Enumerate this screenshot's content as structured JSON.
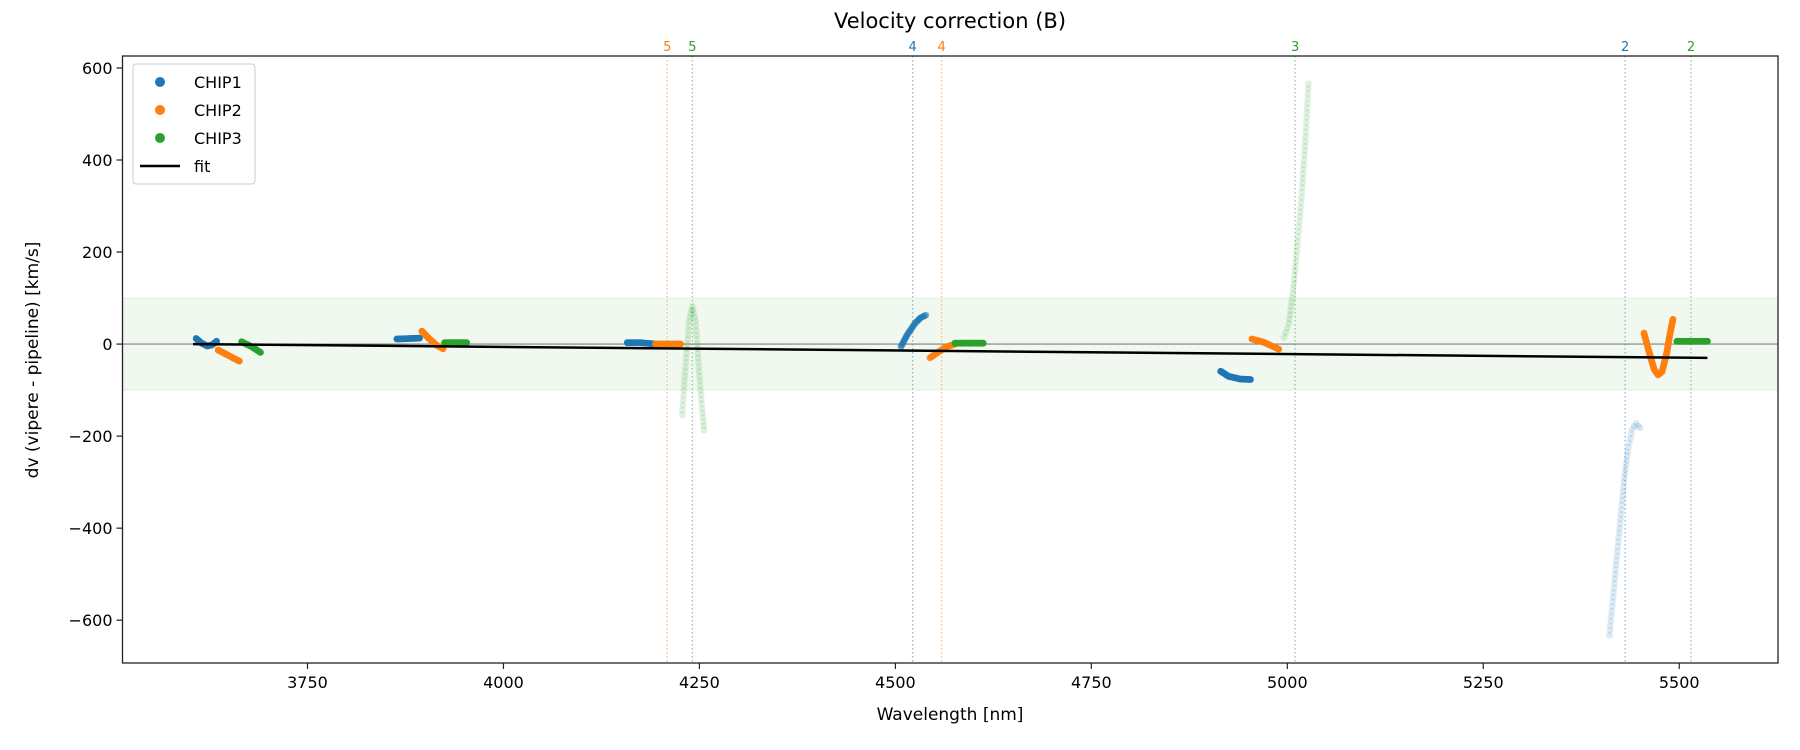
{
  "chart_data": {
    "type": "scatter",
    "title": "Velocity correction (B)",
    "xlabel": "Wavelength [nm]",
    "ylabel": "dv (vipere - pipeline) [km/s]",
    "xlim": [
      3514,
      5626
    ],
    "ylim": [
      -693,
      626
    ],
    "xticks": [
      3750,
      4000,
      4250,
      4500,
      4750,
      5000,
      5250,
      5500
    ],
    "yticks": [
      600,
      400,
      200,
      0,
      -200,
      -400,
      -600
    ],
    "band": {
      "y0": -100,
      "y1": 100,
      "color": "#2ca02c"
    },
    "zero_line": 0,
    "legend": {
      "placement": "upper-left",
      "entries": [
        "CHIP1",
        "CHIP2",
        "CHIP3",
        "fit"
      ]
    },
    "series": [
      {
        "name": "CHIP1",
        "color": "#1f77b4",
        "segments": [
          {
            "alpha": 1,
            "points": [
              [
                3608,
                12
              ],
              [
                3615,
                2
              ],
              [
                3622,
                -4
              ],
              [
                3628,
                -2
              ],
              [
                3634,
                6
              ]
            ]
          },
          {
            "alpha": 1,
            "points": [
              [
                3864,
                11
              ],
              [
                3880,
                12
              ],
              [
                3893,
                13
              ]
            ]
          },
          {
            "alpha": 1,
            "points": [
              [
                4158,
                3
              ],
              [
                4175,
                3
              ],
              [
                4194,
                0
              ]
            ]
          },
          {
            "alpha": 0.5,
            "points": [
              [
                4507,
                -6
              ],
              [
                4515,
                20
              ],
              [
                4525,
                45
              ],
              [
                4532,
                57
              ],
              [
                4539,
                63
              ]
            ]
          },
          {
            "alpha": 1,
            "points": [
              [
                4915,
                -59
              ],
              [
                4925,
                -70
              ],
              [
                4940,
                -76
              ],
              [
                4953,
                -77
              ]
            ]
          },
          {
            "alpha": 0.15,
            "points": [
              [
                5411,
                -633
              ],
              [
                5415,
                -560
              ],
              [
                5420,
                -470
              ],
              [
                5425,
                -380
              ],
              [
                5430,
                -290
              ],
              [
                5435,
                -225
              ],
              [
                5440,
                -185
              ],
              [
                5445,
                -172
              ],
              [
                5450,
                -182
              ]
            ]
          }
        ]
      },
      {
        "name": "CHIP2",
        "color": "#ff7f0e",
        "segments": [
          {
            "alpha": 1,
            "points": [
              [
                3636,
                -13
              ],
              [
                3663,
                -37
              ]
            ]
          },
          {
            "alpha": 1,
            "points": [
              [
                3896,
                28
              ],
              [
                3905,
                12
              ],
              [
                3915,
                -3
              ],
              [
                3923,
                -10
              ]
            ]
          },
          {
            "alpha": 1,
            "points": [
              [
                4194,
                0
              ],
              [
                4226,
                0
              ]
            ]
          },
          {
            "alpha": 0.8,
            "points": [
              [
                4544,
                -30
              ],
              [
                4555,
                -17
              ],
              [
                4565,
                -6
              ],
              [
                4576,
                0
              ]
            ]
          },
          {
            "alpha": 1,
            "points": [
              [
                4955,
                11
              ],
              [
                4970,
                4
              ],
              [
                4989,
                -11
              ]
            ]
          },
          {
            "alpha": 0.9,
            "points": [
              [
                5455,
                24
              ],
              [
                5462,
                -20
              ],
              [
                5468,
                -55
              ],
              [
                5473,
                -67
              ],
              [
                5478,
                -60
              ],
              [
                5484,
                -20
              ],
              [
                5488,
                20
              ],
              [
                5492,
                54
              ]
            ]
          }
        ]
      },
      {
        "name": "CHIP3",
        "color": "#2ca02c",
        "segments": [
          {
            "alpha": 1,
            "points": [
              [
                3666,
                5
              ],
              [
                3678,
                -5
              ],
              [
                3690,
                -18
              ]
            ]
          },
          {
            "alpha": 1,
            "points": [
              [
                3925,
                3
              ],
              [
                3953,
                3
              ]
            ]
          },
          {
            "alpha": 0.15,
            "points": [
              [
                4228,
                -154
              ],
              [
                4231,
                -80
              ],
              [
                4234,
                -10
              ],
              [
                4237,
                50
              ],
              [
                4241,
                82
              ],
              [
                4245,
                50
              ],
              [
                4248,
                -20
              ],
              [
                4251,
                -90
              ],
              [
                4254,
                -150
              ],
              [
                4256,
                -187
              ]
            ]
          },
          {
            "alpha": 1,
            "points": [
              [
                4576,
                2
              ],
              [
                4612,
                2
              ]
            ]
          },
          {
            "alpha": 0.15,
            "points": [
              [
                4996,
                15
              ],
              [
                5002,
                45
              ],
              [
                5007,
                110
              ],
              [
                5011,
                180
              ],
              [
                5015,
                255
              ],
              [
                5019,
                340
              ],
              [
                5023,
                440
              ],
              [
                5027,
                565
              ]
            ]
          },
          {
            "alpha": 1,
            "points": [
              [
                5497,
                6
              ],
              [
                5536,
                6
              ]
            ]
          }
        ]
      }
    ],
    "fit": {
      "name": "fit",
      "color": "#000000",
      "points": [
        [
          3604,
          0
        ],
        [
          5536,
          -30
        ]
      ]
    },
    "vlines": [
      {
        "x": 4209,
        "label": "5",
        "color": "#ff7f0e"
      },
      {
        "x": 4241,
        "label": "5",
        "color": "#2ca02c"
      },
      {
        "x": 4522,
        "label": "4",
        "color": "#1f77b4"
      },
      {
        "x": 4559,
        "label": "4",
        "color": "#ff7f0e"
      },
      {
        "x": 5010,
        "label": "3",
        "color": "#2ca02c"
      },
      {
        "x": 5431,
        "label": "2",
        "color": "#1f77b4"
      },
      {
        "x": 5515,
        "label": "2",
        "color": "#2ca02c"
      }
    ]
  }
}
